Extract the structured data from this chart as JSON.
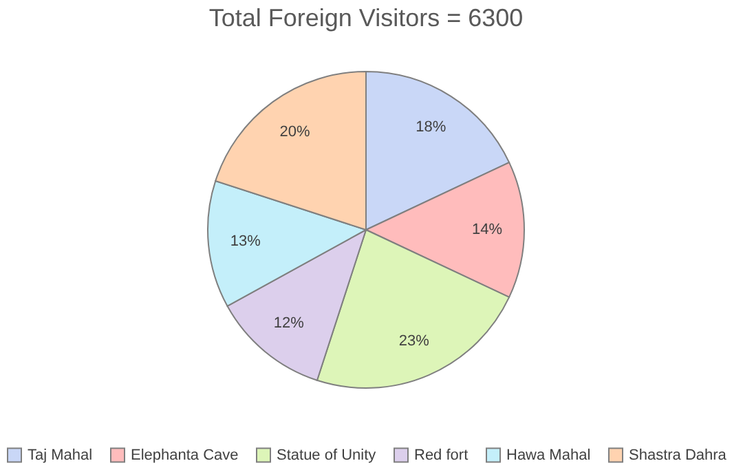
{
  "chart_data": {
    "type": "pie",
    "title": "Total Foreign Visitors = 6300",
    "categories": [
      "Taj Mahal",
      "Elephanta Cave",
      "Statue of Unity",
      "Red fort",
      "Hawa Mahal",
      "Shastra Dahra"
    ],
    "values": [
      18,
      14,
      23,
      12,
      13,
      20
    ],
    "colors": [
      "#c9d7f7",
      "#ffbcbc",
      "#ddf5b8",
      "#dccfec",
      "#c4effa",
      "#ffd3b0"
    ],
    "value_labels": [
      "18%",
      "14%",
      "23%",
      "12%",
      "13%",
      "20%"
    ],
    "legend": "bottom"
  }
}
